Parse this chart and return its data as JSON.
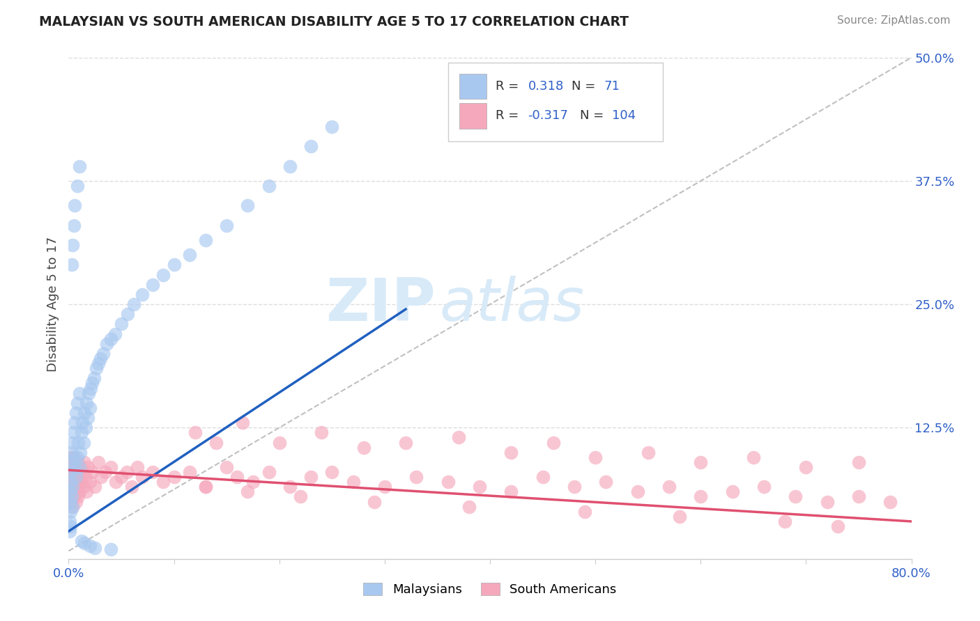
{
  "title": "MALAYSIAN VS SOUTH AMERICAN DISABILITY AGE 5 TO 17 CORRELATION CHART",
  "source": "Source: ZipAtlas.com",
  "ylabel": "Disability Age 5 to 17",
  "xlim": [
    0,
    0.8
  ],
  "ylim": [
    -0.008,
    0.508
  ],
  "legend_r_blue": "0.318",
  "legend_n_blue": "71",
  "legend_r_pink": "-0.317",
  "legend_n_pink": "104",
  "blue_color": "#A8C8F0",
  "pink_color": "#F5A8BC",
  "blue_line_color": "#2060C0",
  "pink_line_color": "#E05070",
  "ref_line_color": "#C0C0C0",
  "legend_text_color": "#3060C8",
  "title_color": "#222222",
  "source_color": "#888888",
  "ylabel_color": "#444444",
  "tick_color": "#3060C8",
  "grid_color": "#DDDDDD",
  "watermark_color": "#D8EAF8",
  "blue_x": [
    0.001,
    0.001,
    0.001,
    0.001,
    0.002,
    0.002,
    0.002,
    0.002,
    0.003,
    0.003,
    0.003,
    0.004,
    0.004,
    0.004,
    0.005,
    0.005,
    0.006,
    0.006,
    0.007,
    0.007,
    0.008,
    0.008,
    0.009,
    0.01,
    0.01,
    0.011,
    0.012,
    0.013,
    0.014,
    0.015,
    0.016,
    0.017,
    0.018,
    0.019,
    0.02,
    0.021,
    0.022,
    0.024,
    0.026,
    0.028,
    0.03,
    0.033,
    0.036,
    0.04,
    0.044,
    0.05,
    0.056,
    0.062,
    0.07,
    0.08,
    0.09,
    0.1,
    0.115,
    0.13,
    0.15,
    0.17,
    0.19,
    0.21,
    0.23,
    0.25,
    0.003,
    0.004,
    0.005,
    0.006,
    0.008,
    0.01,
    0.012,
    0.015,
    0.02,
    0.025,
    0.04
  ],
  "blue_y": [
    0.05,
    0.03,
    0.06,
    0.02,
    0.07,
    0.04,
    0.08,
    0.025,
    0.09,
    0.055,
    0.1,
    0.045,
    0.11,
    0.065,
    0.095,
    0.12,
    0.085,
    0.13,
    0.075,
    0.14,
    0.095,
    0.15,
    0.11,
    0.085,
    0.16,
    0.1,
    0.12,
    0.13,
    0.11,
    0.14,
    0.125,
    0.15,
    0.135,
    0.16,
    0.145,
    0.165,
    0.17,
    0.175,
    0.185,
    0.19,
    0.195,
    0.2,
    0.21,
    0.215,
    0.22,
    0.23,
    0.24,
    0.25,
    0.26,
    0.27,
    0.28,
    0.29,
    0.3,
    0.315,
    0.33,
    0.35,
    0.37,
    0.39,
    0.41,
    0.43,
    0.29,
    0.31,
    0.33,
    0.35,
    0.37,
    0.39,
    0.01,
    0.008,
    0.005,
    0.003,
    0.002
  ],
  "pink_x": [
    0.001,
    0.001,
    0.001,
    0.002,
    0.002,
    0.002,
    0.002,
    0.003,
    0.003,
    0.003,
    0.004,
    0.004,
    0.004,
    0.004,
    0.005,
    0.005,
    0.005,
    0.006,
    0.006,
    0.006,
    0.007,
    0.007,
    0.008,
    0.008,
    0.009,
    0.009,
    0.01,
    0.01,
    0.011,
    0.012,
    0.013,
    0.014,
    0.015,
    0.016,
    0.017,
    0.018,
    0.02,
    0.022,
    0.025,
    0.028,
    0.031,
    0.035,
    0.04,
    0.045,
    0.05,
    0.055,
    0.06,
    0.065,
    0.07,
    0.08,
    0.09,
    0.1,
    0.115,
    0.13,
    0.15,
    0.16,
    0.175,
    0.19,
    0.21,
    0.23,
    0.25,
    0.27,
    0.3,
    0.33,
    0.36,
    0.39,
    0.42,
    0.45,
    0.48,
    0.51,
    0.54,
    0.57,
    0.6,
    0.63,
    0.66,
    0.69,
    0.72,
    0.75,
    0.78,
    0.12,
    0.14,
    0.165,
    0.2,
    0.24,
    0.28,
    0.32,
    0.37,
    0.42,
    0.46,
    0.5,
    0.55,
    0.6,
    0.65,
    0.7,
    0.75,
    0.68,
    0.73,
    0.58,
    0.49,
    0.38,
    0.29,
    0.22,
    0.17,
    0.13
  ],
  "pink_y": [
    0.075,
    0.06,
    0.09,
    0.05,
    0.08,
    0.065,
    0.095,
    0.055,
    0.085,
    0.07,
    0.06,
    0.08,
    0.095,
    0.045,
    0.07,
    0.09,
    0.055,
    0.08,
    0.065,
    0.095,
    0.075,
    0.05,
    0.085,
    0.065,
    0.09,
    0.055,
    0.075,
    0.06,
    0.085,
    0.07,
    0.08,
    0.065,
    0.09,
    0.075,
    0.06,
    0.085,
    0.07,
    0.08,
    0.065,
    0.09,
    0.075,
    0.08,
    0.085,
    0.07,
    0.075,
    0.08,
    0.065,
    0.085,
    0.075,
    0.08,
    0.07,
    0.075,
    0.08,
    0.065,
    0.085,
    0.075,
    0.07,
    0.08,
    0.065,
    0.075,
    0.08,
    0.07,
    0.065,
    0.075,
    0.07,
    0.065,
    0.06,
    0.075,
    0.065,
    0.07,
    0.06,
    0.065,
    0.055,
    0.06,
    0.065,
    0.055,
    0.05,
    0.055,
    0.05,
    0.12,
    0.11,
    0.13,
    0.11,
    0.12,
    0.105,
    0.11,
    0.115,
    0.1,
    0.11,
    0.095,
    0.1,
    0.09,
    0.095,
    0.085,
    0.09,
    0.03,
    0.025,
    0.035,
    0.04,
    0.045,
    0.05,
    0.055,
    0.06,
    0.065
  ],
  "blue_trend_x": [
    0.0,
    0.32
  ],
  "blue_trend_y": [
    0.02,
    0.245
  ],
  "pink_trend_x": [
    0.0,
    0.8
  ],
  "pink_trend_y": [
    0.082,
    0.03
  ]
}
